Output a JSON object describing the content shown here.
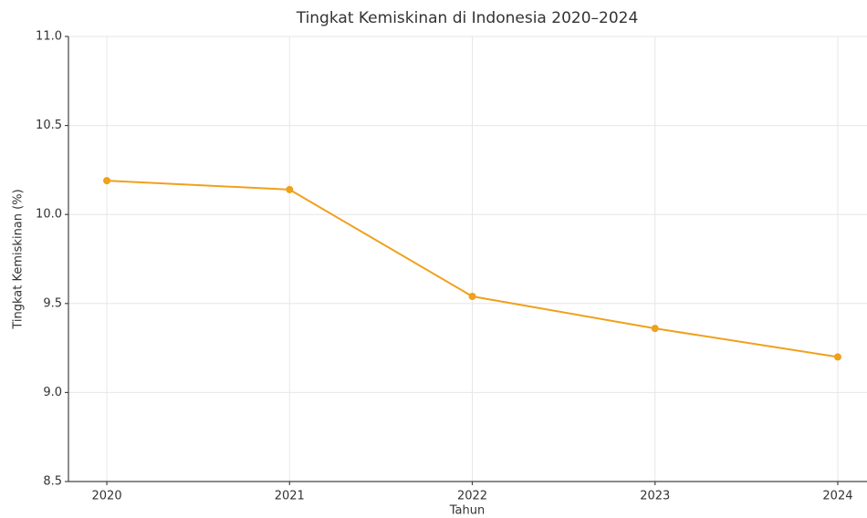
{
  "chart_data": {
    "type": "line",
    "title": "Tingkat Kemiskinan di Indonesia 2020–2024",
    "x_label": "Tahun",
    "y_label": "Tingkat Kemiskinan (%)",
    "x": [
      2020,
      2021,
      2022,
      2023,
      2024
    ],
    "series": [
      {
        "name": "Tingkat Kemiskinan (%)",
        "color": "#f0a01c",
        "values": [
          10.19,
          10.14,
          9.54,
          9.36,
          9.2
        ]
      }
    ],
    "xlim": [
      2019.79,
      2024.16
    ],
    "xticks": [
      2020,
      2021,
      2022,
      2023,
      2024
    ],
    "ylim": [
      8.5,
      11.0
    ],
    "yticks": [
      {
        "value": 8.5,
        "label": "8.5"
      },
      {
        "value": 9.0,
        "label": "9.0"
      },
      {
        "value": 9.5,
        "label": "9.5"
      },
      {
        "value": 10.0,
        "label": "10.0"
      },
      {
        "value": 10.5,
        "label": "10.5"
      },
      {
        "value": 11.0,
        "label": "11.0"
      }
    ],
    "grid": true
  }
}
